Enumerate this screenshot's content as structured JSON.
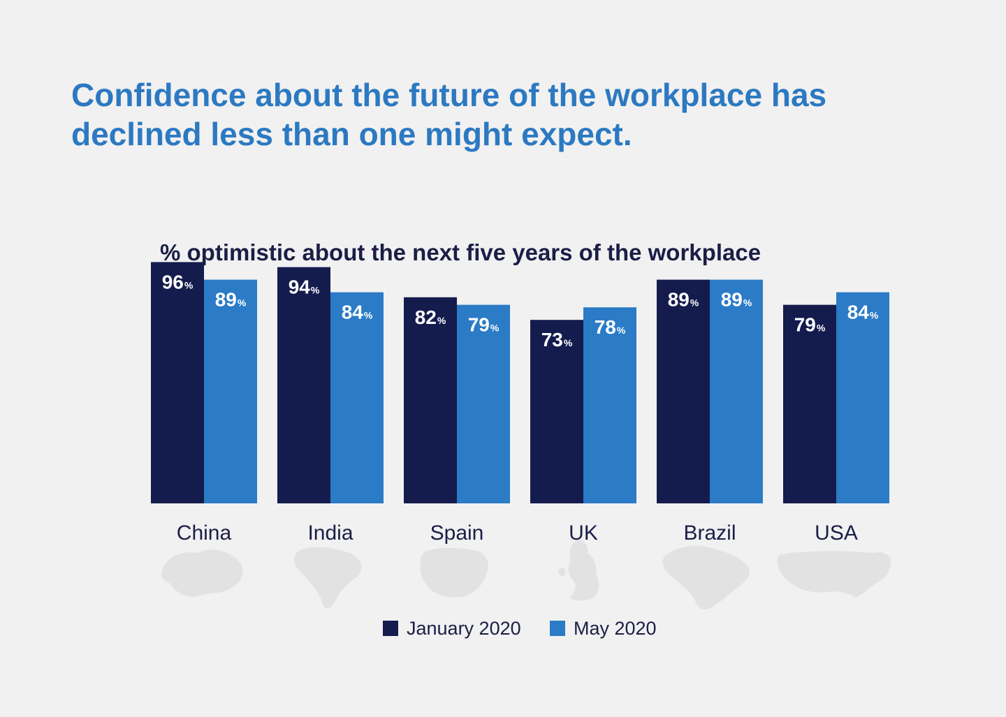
{
  "title_lines": [
    "Confidence about the future of the workplace has",
    "declined less than one might expect."
  ],
  "colors": {
    "background": "#f1f1f1",
    "title": "#2c79c2",
    "subtitle": "#1b1e45",
    "january": "#141b4d",
    "may": "#2b7bc6",
    "map_silhouette": "#e2e2e2"
  },
  "icons": {
    "China": "china-map-icon",
    "India": "india-map-icon",
    "Spain": "spain-map-icon",
    "UK": "uk-map-icon",
    "Brazil": "brazil-map-icon",
    "USA": "usa-map-icon"
  },
  "chart_data": {
    "type": "bar",
    "title": "% optimistic about the next five years of the workplace",
    "categories": [
      "China",
      "India",
      "Spain",
      "UK",
      "Brazil",
      "USA"
    ],
    "series": [
      {
        "name": "January 2020",
        "values": [
          96,
          94,
          82,
          73,
          89,
          79
        ]
      },
      {
        "name": "May 2020",
        "values": [
          89,
          84,
          79,
          78,
          89,
          84
        ]
      }
    ],
    "value_suffix": "%",
    "ylim": [
      0,
      100
    ],
    "grid": false,
    "legend": "bottom-center"
  }
}
